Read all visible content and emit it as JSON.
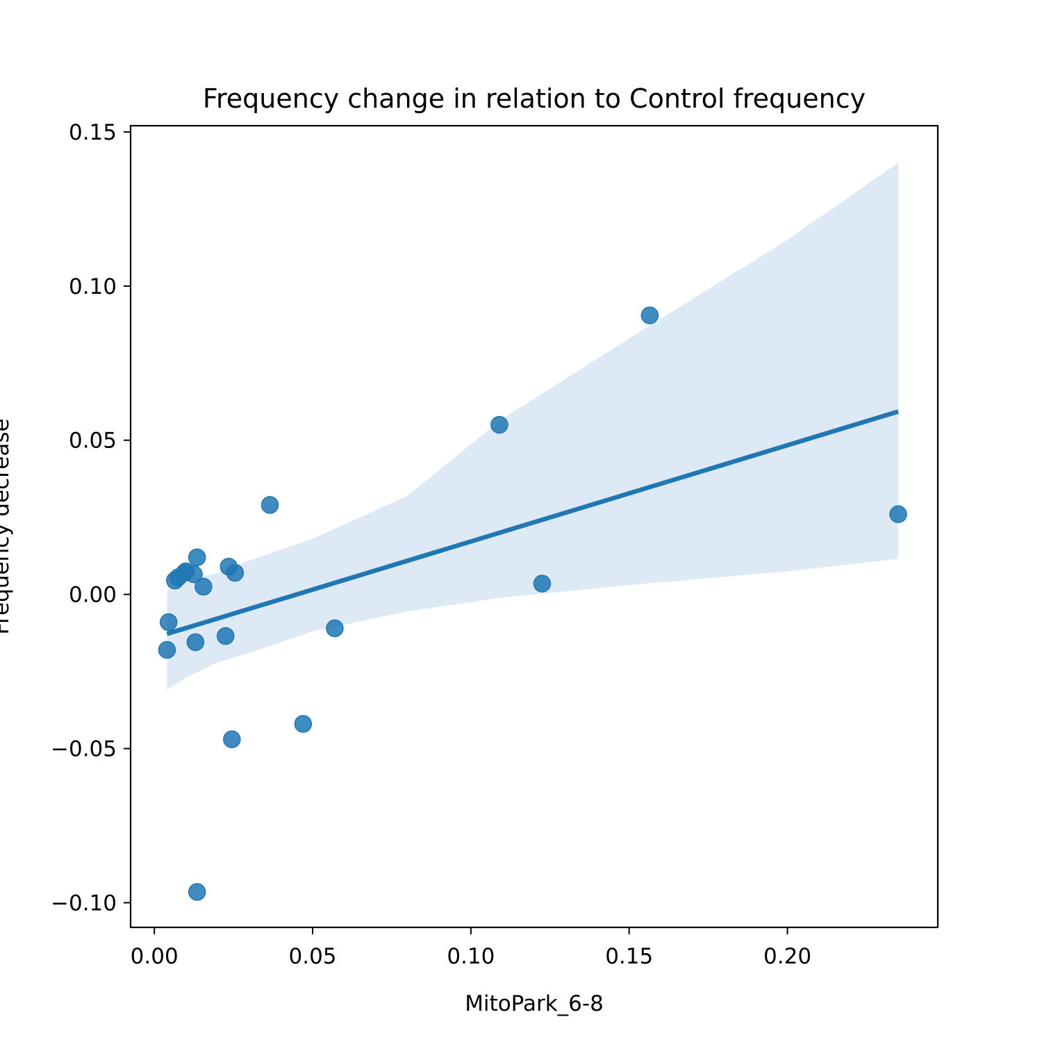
{
  "chart_data": {
    "type": "scatter",
    "title": "Frequency change in relation to Control frequency",
    "xlabel": "MitoPark_6-8",
    "ylabel": "Frequency decrease",
    "xlim": [
      -0.0075,
      0.2475
    ],
    "ylim": [
      -0.108,
      0.152
    ],
    "xticks": [
      0.0,
      0.05,
      0.1,
      0.15,
      0.2
    ],
    "xtick_labels": [
      "0.00",
      "0.05",
      "0.10",
      "0.15",
      "0.20"
    ],
    "yticks": [
      -0.1,
      -0.05,
      0.0,
      0.05,
      0.1,
      0.15
    ],
    "ytick_labels": [
      "−0.10",
      "−0.05",
      "0.00",
      "0.05",
      "0.10",
      "0.15"
    ],
    "grid": false,
    "colors": {
      "points": "#1f77b4",
      "line": "#1f77b4",
      "band": "#dde9f4"
    },
    "series": [
      {
        "type": "scatter",
        "points": [
          {
            "x": 0.004,
            "y": -0.018
          },
          {
            "x": 0.0045,
            "y": -0.009
          },
          {
            "x": 0.0065,
            "y": 0.0045
          },
          {
            "x": 0.0075,
            "y": 0.0055
          },
          {
            "x": 0.0095,
            "y": 0.007
          },
          {
            "x": 0.01,
            "y": 0.0075
          },
          {
            "x": 0.0125,
            "y": 0.0065
          },
          {
            "x": 0.0135,
            "y": 0.012
          },
          {
            "x": 0.013,
            "y": -0.0155
          },
          {
            "x": 0.0135,
            "y": -0.0965
          },
          {
            "x": 0.0155,
            "y": 0.0025
          },
          {
            "x": 0.0225,
            "y": -0.0135
          },
          {
            "x": 0.0235,
            "y": 0.009
          },
          {
            "x": 0.0255,
            "y": 0.007
          },
          {
            "x": 0.0245,
            "y": -0.047
          },
          {
            "x": 0.0365,
            "y": 0.029
          },
          {
            "x": 0.047,
            "y": -0.042
          },
          {
            "x": 0.057,
            "y": -0.011
          },
          {
            "x": 0.109,
            "y": 0.055
          },
          {
            "x": 0.1225,
            "y": 0.0035
          },
          {
            "x": 0.1565,
            "y": 0.0905
          },
          {
            "x": 0.235,
            "y": 0.026
          }
        ]
      },
      {
        "type": "regression_line",
        "x": [
          0.004,
          0.235
        ],
        "y": [
          -0.0128,
          0.0593
        ]
      },
      {
        "type": "confidence_band",
        "x": [
          0.004,
          0.01,
          0.02,
          0.03,
          0.05,
          0.08,
          0.11,
          0.15,
          0.2,
          0.235
        ],
        "upper": [
          0.001,
          0.0045,
          0.007,
          0.011,
          0.018,
          0.032,
          0.057,
          0.083,
          0.115,
          0.14
        ],
        "lower": [
          -0.031,
          -0.027,
          -0.022,
          -0.019,
          -0.012,
          -0.0055,
          -0.001,
          0.003,
          0.0075,
          0.0115
        ]
      }
    ]
  }
}
